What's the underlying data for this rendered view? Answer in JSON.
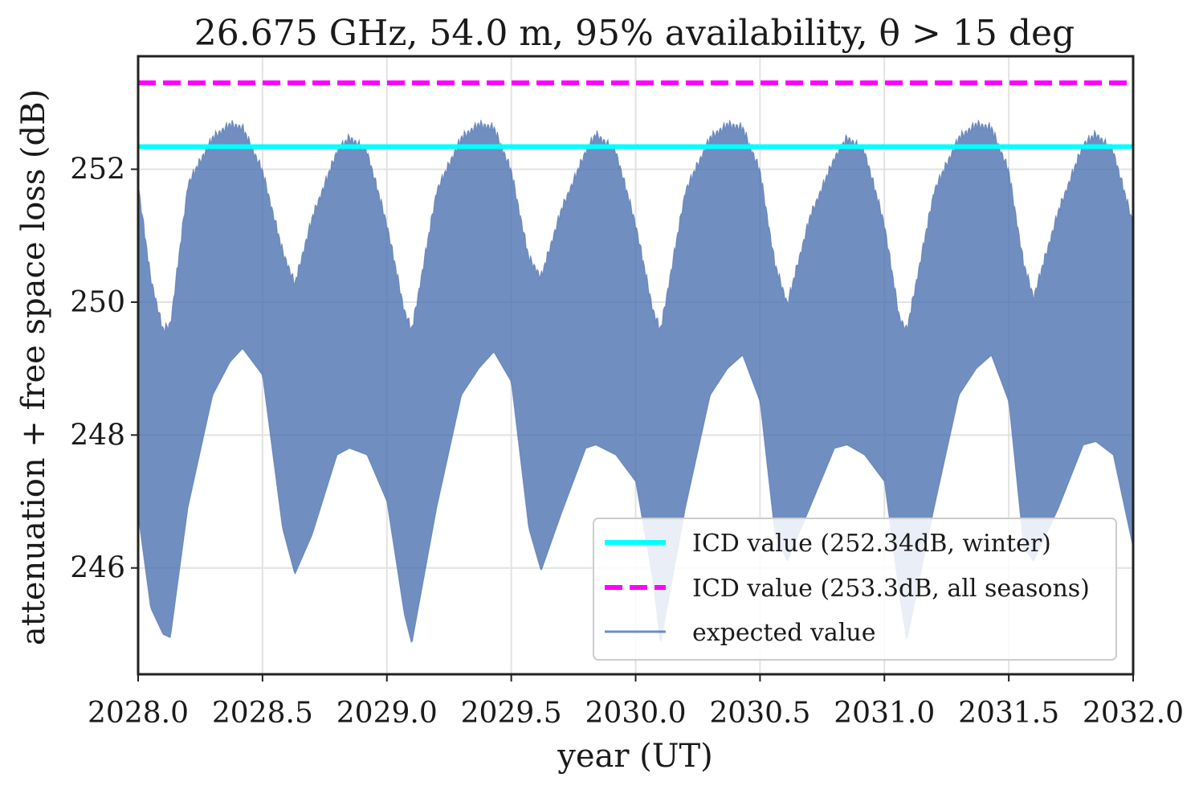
{
  "chart_data": {
    "type": "area",
    "title": "26.675 GHz, 54.0 m, 95% availability, θ > 15 deg",
    "xlabel": "year (UT)",
    "ylabel": "attenuation + free space loss (dB)",
    "xlim": [
      2028.0,
      2032.0
    ],
    "ylim": [
      244.4,
      253.7
    ],
    "x_ticks": [
      2028.0,
      2028.5,
      2029.0,
      2029.5,
      2030.0,
      2030.5,
      2031.0,
      2031.5,
      2032.0
    ],
    "x_tick_labels": [
      "2028.0",
      "2028.5",
      "2029.0",
      "2029.5",
      "2030.0",
      "2030.5",
      "2031.0",
      "2031.5",
      "2032.0"
    ],
    "y_ticks": [
      246,
      248,
      250,
      252
    ],
    "y_tick_labels": [
      "246",
      "248",
      "250",
      "252"
    ],
    "grid": true,
    "legend_position": "lower-right",
    "hlines": [
      {
        "name": "ICD value (252.34dB, winter)",
        "y": 252.34,
        "color": "#00ffff",
        "style": "solid"
      },
      {
        "name": "ICD value (253.3dB, all seasons)",
        "y": 253.3,
        "color": "#ff00ff",
        "style": "dashed"
      }
    ],
    "series": [
      {
        "name": "expected value",
        "color": "#4c72b0",
        "x": [
          2028.0,
          2028.05,
          2028.1,
          2028.13,
          2028.2,
          2028.3,
          2028.37,
          2028.42,
          2028.5,
          2028.58,
          2028.63,
          2028.7,
          2028.8,
          2028.85,
          2028.92,
          2029.0,
          2029.07,
          2029.1,
          2029.2,
          2029.3,
          2029.37,
          2029.43,
          2029.5,
          2029.57,
          2029.62,
          2029.7,
          2029.8,
          2029.84,
          2029.92,
          2030.0,
          2030.07,
          2030.1,
          2030.2,
          2030.3,
          2030.37,
          2030.43,
          2030.5,
          2030.56,
          2030.61,
          2030.7,
          2030.8,
          2030.85,
          2030.92,
          2031.0,
          2031.06,
          2031.09,
          2031.2,
          2031.3,
          2031.37,
          2031.43,
          2031.5,
          2031.56,
          2031.6,
          2031.7,
          2031.8,
          2031.85,
          2031.92,
          2032.0
        ],
        "upper": [
          251.8,
          250.4,
          249.6,
          249.7,
          251.8,
          252.5,
          252.7,
          252.65,
          252.0,
          250.8,
          250.3,
          251.3,
          252.3,
          252.5,
          252.3,
          251.2,
          249.9,
          249.6,
          251.7,
          252.5,
          252.7,
          252.65,
          252.0,
          250.7,
          250.4,
          251.4,
          252.3,
          252.55,
          252.3,
          251.2,
          249.9,
          249.6,
          251.7,
          252.5,
          252.7,
          252.65,
          252.0,
          250.6,
          250.0,
          251.3,
          252.2,
          252.5,
          252.3,
          251.2,
          249.8,
          249.6,
          251.7,
          252.5,
          252.7,
          252.65,
          252.0,
          250.6,
          250.1,
          251.4,
          252.4,
          252.55,
          252.3,
          251.2
        ],
        "lower": [
          246.8,
          245.4,
          245.0,
          244.95,
          246.9,
          248.6,
          249.1,
          249.3,
          248.9,
          246.6,
          245.9,
          246.5,
          247.7,
          247.8,
          247.7,
          247.0,
          245.3,
          244.85,
          246.9,
          248.6,
          249.0,
          249.25,
          248.8,
          246.6,
          245.95,
          246.8,
          247.8,
          247.85,
          247.7,
          247.3,
          245.8,
          244.85,
          246.9,
          248.6,
          249.0,
          249.2,
          248.5,
          246.5,
          246.1,
          246.9,
          247.8,
          247.85,
          247.7,
          247.3,
          245.6,
          244.9,
          246.9,
          248.6,
          249.0,
          249.2,
          248.5,
          246.3,
          246.1,
          246.9,
          247.85,
          247.9,
          247.7,
          246.3
        ]
      }
    ]
  }
}
